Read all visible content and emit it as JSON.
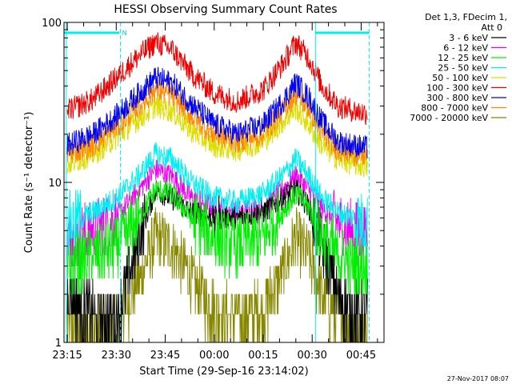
{
  "chart_data": {
    "type": "line",
    "title": "HESSI Observing Summary Count Rates",
    "xlabel": "Start Time (29-Sep-16 23:14:02)",
    "ylabel": "Count Rate (s⁻¹ detector⁻¹)",
    "yscale": "log",
    "ylim": [
      1,
      100
    ],
    "xlim_minutes": [
      -1,
      97
    ],
    "x_ticks": [
      {
        "label": "23:15",
        "minute": 0
      },
      {
        "label": "23:30",
        "minute": 15
      },
      {
        "label": "23:45",
        "minute": 30
      },
      {
        "label": "00:00",
        "minute": 45
      },
      {
        "label": "00:15",
        "minute": 60
      },
      {
        "label": "00:30",
        "minute": 75
      },
      {
        "label": "00:45",
        "minute": 90
      }
    ],
    "y_ticks": [
      {
        "label": "1",
        "value": 1
      },
      {
        "label": "10",
        "value": 10
      },
      {
        "label": "100",
        "value": 100
      }
    ],
    "legend_header": [
      "Det 1,3, FDecim 1,",
      "Att 0"
    ],
    "legend_position": "right",
    "series": [
      {
        "name": "3 - 6 keV",
        "color": "#000000",
        "x": [
          0,
          8,
          15,
          22,
          27,
          32,
          38,
          45,
          52,
          60,
          66,
          70,
          74,
          78,
          83,
          88,
          92
        ],
        "y": [
          2.0,
          1.5,
          1.4,
          4.5,
          9.0,
          8.0,
          6.5,
          6.0,
          6.0,
          6.5,
          8.0,
          9.0,
          7.0,
          4.0,
          2.0,
          1.5,
          1.5
        ]
      },
      {
        "name": "6 - 12 keV",
        "color": "#ee00ee",
        "x": [
          0,
          8,
          15,
          22,
          27,
          32,
          38,
          45,
          52,
          60,
          66,
          70,
          74,
          78,
          83,
          88,
          92
        ],
        "y": [
          4.5,
          5.0,
          6.0,
          9.0,
          12.0,
          11.0,
          8.0,
          7.0,
          6.5,
          7.0,
          9.0,
          11.0,
          9.0,
          7.0,
          5.5,
          5.0,
          4.5
        ]
      },
      {
        "name": "12 - 25 keV",
        "color": "#00ee00",
        "x": [
          0,
          8,
          15,
          22,
          27,
          32,
          38,
          45,
          52,
          60,
          66,
          70,
          74,
          78,
          83,
          88,
          92
        ],
        "y": [
          3.0,
          3.5,
          4.0,
          6.0,
          9.0,
          8.5,
          6.0,
          4.5,
          4.0,
          4.5,
          6.5,
          8.5,
          7.0,
          4.5,
          3.5,
          3.0,
          3.0
        ]
      },
      {
        "name": "25 - 50 keV",
        "color": "#00eeee",
        "x": [
          0,
          8,
          15,
          22,
          27,
          32,
          38,
          45,
          52,
          60,
          66,
          70,
          74,
          78,
          83,
          88,
          92
        ],
        "y": [
          5.5,
          6.5,
          8.0,
          11.0,
          15.0,
          14.0,
          10.0,
          8.0,
          7.5,
          8.5,
          11.0,
          14.0,
          11.0,
          8.0,
          6.5,
          6.0,
          5.5
        ]
      },
      {
        "name": "50 - 100 keV",
        "color": "#dddd00",
        "x": [
          0,
          8,
          15,
          22,
          27,
          32,
          38,
          45,
          52,
          60,
          66,
          70,
          74,
          78,
          83,
          88,
          92
        ],
        "y": [
          13.0,
          15.0,
          19.0,
          25.0,
          30.0,
          28.0,
          21.0,
          17.0,
          16.0,
          18.0,
          24.0,
          29.0,
          23.0,
          17.0,
          14.0,
          13.0,
          12.5
        ]
      },
      {
        "name": "100 - 300 keV",
        "color": "#ee0000",
        "x": [
          0,
          8,
          15,
          22,
          27,
          32,
          38,
          45,
          52,
          60,
          66,
          70,
          74,
          78,
          83,
          88,
          92
        ],
        "y": [
          28.0,
          33.0,
          45.0,
          62.0,
          75.0,
          68.0,
          48.0,
          36.0,
          32.0,
          38.0,
          55.0,
          75.0,
          60.0,
          40.0,
          30.0,
          28.0,
          27.0
        ]
      },
      {
        "name": "300 - 800 keV",
        "color": "#0000ee",
        "x": [
          0,
          8,
          15,
          22,
          27,
          32,
          38,
          45,
          52,
          60,
          66,
          70,
          74,
          78,
          83,
          88,
          92
        ],
        "y": [
          17.0,
          20.0,
          26.0,
          36.0,
          45.0,
          42.0,
          31.0,
          23.0,
          20.0,
          23.0,
          32.0,
          42.0,
          34.0,
          24.0,
          18.0,
          17.0,
          16.5
        ]
      },
      {
        "name": "800 - 7000 keV",
        "color": "#ff8800",
        "x": [
          0,
          8,
          15,
          22,
          27,
          32,
          38,
          45,
          52,
          60,
          66,
          70,
          74,
          78,
          83,
          88,
          92
        ],
        "y": [
          15.0,
          17.0,
          22.0,
          30.0,
          38.0,
          35.0,
          26.0,
          20.0,
          18.0,
          20.0,
          28.0,
          36.0,
          29.0,
          20.0,
          16.0,
          15.0,
          14.5
        ]
      },
      {
        "name": "7000 - 20000 keV",
        "color": "#888800",
        "x": [
          0,
          8,
          15,
          22,
          27,
          32,
          38,
          45,
          52,
          60,
          66,
          70,
          74,
          78,
          83,
          88,
          92
        ],
        "y": [
          1.2,
          1.2,
          1.3,
          2.5,
          4.5,
          4.0,
          2.5,
          1.6,
          1.4,
          1.6,
          2.8,
          4.5,
          3.5,
          2.0,
          1.4,
          1.2,
          1.2
        ]
      }
    ],
    "annotations": [
      {
        "type": "night-bar",
        "color": "#00eeee",
        "x0": -1,
        "x1": 16
      },
      {
        "type": "night-bar",
        "color": "#00eeee",
        "x0": 76,
        "x1": 92.5
      },
      {
        "type": "label",
        "text": "N",
        "x": 16.8
      },
      {
        "type": "vline",
        "color": "#00eeee",
        "style": "solid",
        "x": -0.3
      },
      {
        "type": "vline",
        "color": "#00eeee",
        "style": "dashed",
        "x": 16.3
      },
      {
        "type": "vline",
        "color": "#00eeee",
        "style": "solid",
        "x": 76
      },
      {
        "type": "vline",
        "color": "#00eeee",
        "style": "dashed",
        "x": 92.5
      }
    ],
    "grid": false,
    "timestamp": "27-Nov-2017 08:07"
  }
}
